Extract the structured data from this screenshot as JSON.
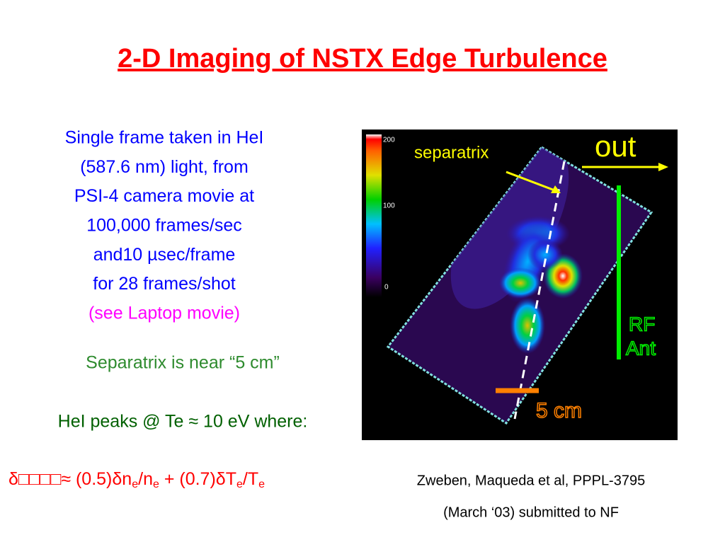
{
  "title": "2-D Imaging of NSTX Edge Turbulence",
  "description": {
    "lines": [
      "Single frame taken in HeI",
      "(587.6 nm) light, from",
      "PSI-4 camera movie at",
      "100,000 frames/sec",
      "and10 µsec/frame",
      "for 28 frames/shot"
    ],
    "link": "(see Laptop movie)"
  },
  "separatrix_note": "Separatrix is near “5 cm”",
  "peaks_note": "HeI peaks @ Te ≈ 10 eV where:",
  "formula": [
    "δ□□□□≈ (0.5)δn",
    "e",
    "/n",
    "e",
    " + (0.7)δT",
    "e",
    "/T",
    "e"
  ],
  "citation": [
    "Zweben, Maqueda et al, PPPL-3795",
    "(March ‘03)  submitted to NF"
  ],
  "image": {
    "colorbar_labels": [
      "200",
      "100",
      "0"
    ],
    "separatrix_label": "separatrix",
    "out_label": "out",
    "antenna_label": [
      "RF",
      "Ant"
    ],
    "scale_label": "5 cm"
  }
}
